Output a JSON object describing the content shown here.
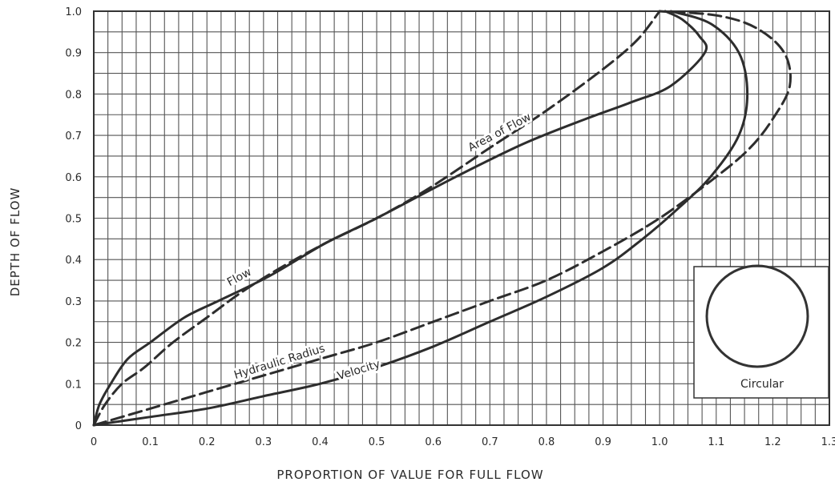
{
  "chart_data": {
    "type": "line",
    "xlabel": "PROPORTION OF VALUE FOR FULL FLOW",
    "ylabel": "DEPTH OF FLOW",
    "xlim": [
      0,
      1.3
    ],
    "ylim": [
      0,
      1.0
    ],
    "x_ticks": [
      "0",
      "0.1",
      "0.2",
      "0.3",
      "0.4",
      "0.5",
      "0.6",
      "0.7",
      "0.8",
      "0.9",
      "1.0",
      "1.1",
      "1.2",
      "1.3"
    ],
    "y_ticks": [
      "0",
      "0.1",
      "0.2",
      "0.3",
      "0.4",
      "0.5",
      "0.6",
      "0.7",
      "0.8",
      "0.9",
      "1.0"
    ],
    "grid": true,
    "series": [
      {
        "name": "Flow",
        "style": "solid",
        "points": [
          [
            0,
            0
          ],
          [
            0.01,
            0.05
          ],
          [
            0.03,
            0.1
          ],
          [
            0.06,
            0.16
          ],
          [
            0.1,
            0.2
          ],
          [
            0.16,
            0.26
          ],
          [
            0.22,
            0.3
          ],
          [
            0.31,
            0.36
          ],
          [
            0.41,
            0.44
          ],
          [
            0.5,
            0.5
          ],
          [
            0.64,
            0.6
          ],
          [
            0.76,
            0.68
          ],
          [
            0.87,
            0.74
          ],
          [
            0.95,
            0.78
          ],
          [
            1.02,
            0.82
          ],
          [
            1.08,
            0.9
          ],
          [
            1.07,
            0.94
          ],
          [
            1.04,
            0.98
          ],
          [
            1.01,
            1.0
          ]
        ]
      },
      {
        "name": "Area of Flow",
        "style": "dashed",
        "points": [
          [
            0,
            0
          ],
          [
            0.02,
            0.05
          ],
          [
            0.05,
            0.1
          ],
          [
            0.09,
            0.14
          ],
          [
            0.14,
            0.2
          ],
          [
            0.2,
            0.26
          ],
          [
            0.26,
            0.32
          ],
          [
            0.33,
            0.38
          ],
          [
            0.41,
            0.44
          ],
          [
            0.5,
            0.5
          ],
          [
            0.59,
            0.57
          ],
          [
            0.7,
            0.67
          ],
          [
            0.8,
            0.76
          ],
          [
            0.9,
            0.86
          ],
          [
            0.96,
            0.93
          ],
          [
            1.0,
            1.0
          ]
        ]
      },
      {
        "name": "Hydraulic Radius",
        "style": "dashed",
        "points": [
          [
            0,
            0
          ],
          [
            0.1,
            0.04
          ],
          [
            0.2,
            0.08
          ],
          [
            0.3,
            0.12
          ],
          [
            0.4,
            0.16
          ],
          [
            0.5,
            0.2
          ],
          [
            0.6,
            0.25
          ],
          [
            0.7,
            0.3
          ],
          [
            0.8,
            0.35
          ],
          [
            0.9,
            0.42
          ],
          [
            1.0,
            0.5
          ],
          [
            1.1,
            0.6
          ],
          [
            1.16,
            0.67
          ],
          [
            1.2,
            0.74
          ],
          [
            1.23,
            0.82
          ],
          [
            1.22,
            0.9
          ],
          [
            1.17,
            0.96
          ],
          [
            1.1,
            0.99
          ],
          [
            1.0,
            1.0
          ]
        ]
      },
      {
        "name": "Velocity",
        "style": "solid",
        "points": [
          [
            0,
            0
          ],
          [
            0.1,
            0.02
          ],
          [
            0.2,
            0.04
          ],
          [
            0.3,
            0.07
          ],
          [
            0.4,
            0.1
          ],
          [
            0.5,
            0.14
          ],
          [
            0.6,
            0.19
          ],
          [
            0.7,
            0.25
          ],
          [
            0.8,
            0.31
          ],
          [
            0.9,
            0.38
          ],
          [
            0.97,
            0.45
          ],
          [
            1.03,
            0.52
          ],
          [
            1.09,
            0.6
          ],
          [
            1.14,
            0.7
          ],
          [
            1.155,
            0.8
          ],
          [
            1.14,
            0.9
          ],
          [
            1.09,
            0.97
          ],
          [
            1.02,
            1.0
          ]
        ]
      }
    ],
    "annotations": [
      {
        "text": "Flow",
        "x": 0.26,
        "y": 0.35,
        "angle": -28
      },
      {
        "text": "Area of Flow",
        "x": 0.72,
        "y": 0.7,
        "angle": -28
      },
      {
        "text": "Hydraulic Radius",
        "x": 0.33,
        "y": 0.145,
        "angle": -17
      },
      {
        "text": "Velocity",
        "x": 0.47,
        "y": 0.125,
        "angle": -17
      }
    ],
    "inset": {
      "shape": "circle",
      "label": "Circular"
    }
  }
}
